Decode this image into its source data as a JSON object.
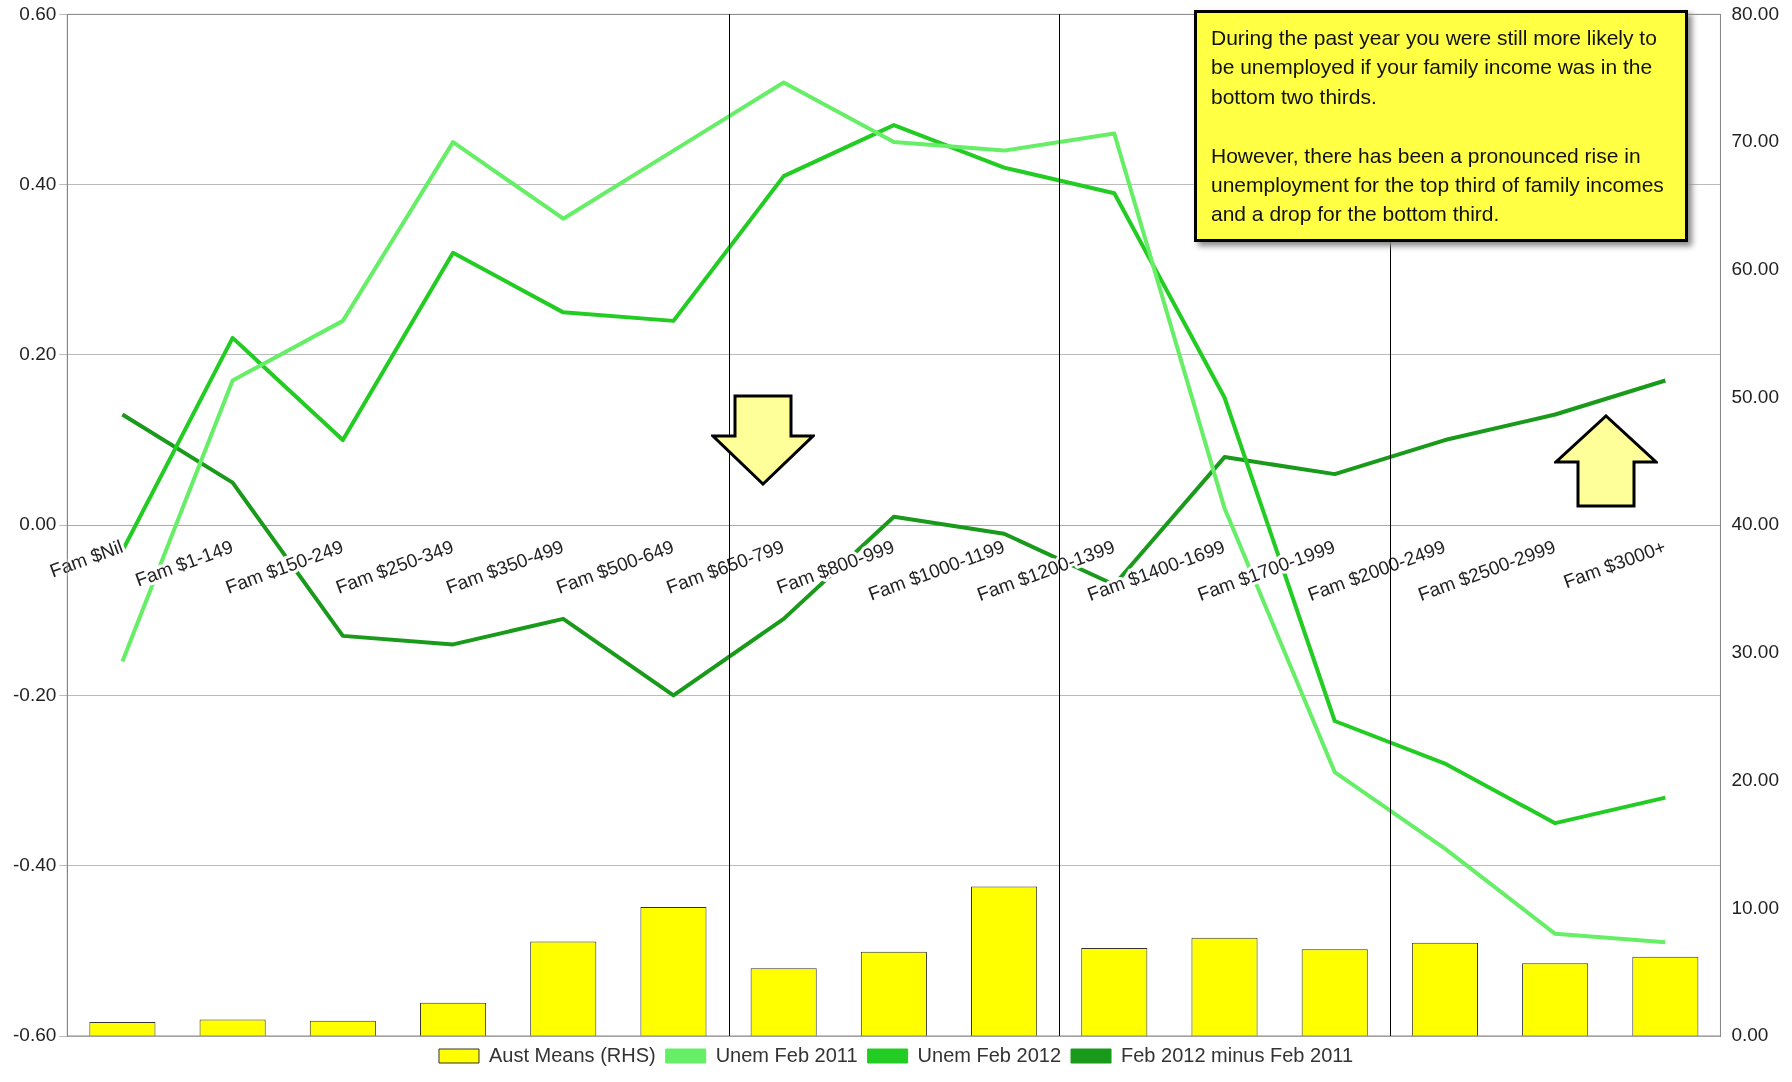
{
  "chart_data": {
    "type": "line",
    "categories": [
      "Fam $Nil",
      "Fam $1-149",
      "Fam $150-249",
      "Fam $250-349",
      "Fam $350-499",
      "Fam $500-649",
      "Fam $650-799",
      "Fam $800-999",
      "Fam $1000-1199",
      "Fam $1200-1399",
      "Fam $1400-1699",
      "Fam $1700-1999",
      "Fam $2000-2499",
      "Fam $2500-2999",
      "Fam $3000+"
    ],
    "series": [
      {
        "name": "Aust Means (RHS)",
        "type": "bar",
        "axis": "y2",
        "color": "#ffff00",
        "values": [
          1.1,
          1.3,
          1.2,
          2.6,
          7.4,
          10.1,
          5.3,
          6.6,
          11.7,
          6.9,
          7.7,
          6.8,
          7.3,
          5.7,
          6.2
        ]
      },
      {
        "name": "Unem Feb 2011",
        "color": "#66ee66",
        "values": [
          -0.16,
          0.17,
          0.24,
          0.45,
          0.36,
          0.44,
          0.52,
          0.45,
          0.44,
          0.46,
          0.02,
          -0.29,
          -0.38,
          -0.48,
          -0.49
        ]
      },
      {
        "name": "Unem Feb 2012",
        "color": "#22cc22",
        "values": [
          -0.03,
          0.22,
          0.1,
          0.32,
          0.25,
          0.24,
          0.41,
          0.47,
          0.42,
          0.39,
          0.15,
          -0.23,
          -0.28,
          -0.35,
          -0.32
        ]
      },
      {
        "name": "Feb 2012 minus Feb 2011",
        "color": "#1a9a1a",
        "values": [
          0.13,
          0.05,
          -0.13,
          -0.14,
          -0.11,
          -0.2,
          -0.11,
          0.01,
          -0.01,
          -0.07,
          0.08,
          0.06,
          0.1,
          0.13,
          0.17
        ]
      }
    ],
    "ylim": [
      -0.6,
      0.6
    ],
    "yticks": [
      {
        "value": -0.6,
        "label": "-0.60"
      },
      {
        "value": -0.4,
        "label": "-0.40"
      },
      {
        "value": -0.2,
        "label": "-0.20"
      },
      {
        "value": 0,
        "label": "0.00"
      },
      {
        "value": 0.2,
        "label": "0.20"
      },
      {
        "value": 0.4,
        "label": "0.40"
      },
      {
        "value": 0.6,
        "label": "0.60"
      }
    ],
    "y2lim": [
      0,
      80
    ],
    "y2ticks": [
      {
        "value": 0,
        "label": "0.00"
      },
      {
        "value": 10,
        "label": "10.00"
      },
      {
        "value": 20,
        "label": "20.00"
      },
      {
        "value": 30,
        "label": "30.00"
      },
      {
        "value": 40,
        "label": "40.00"
      },
      {
        "value": 50,
        "label": "50.00"
      },
      {
        "value": 60,
        "label": "60.00"
      },
      {
        "value": 70,
        "label": "70.00"
      },
      {
        "value": 80,
        "label": "80.00"
      }
    ],
    "annotations": [
      "During the past year you were still more likely to be unemployed if your family income was in the bottom two thirds.\n\nHowever, there has been a pronounced rise in unemployment for the top third of family incomes  and a drop for the bottom third."
    ],
    "grid": "y",
    "legend": "bottom",
    "marker": "none",
    "line_style": "solid"
  }
}
